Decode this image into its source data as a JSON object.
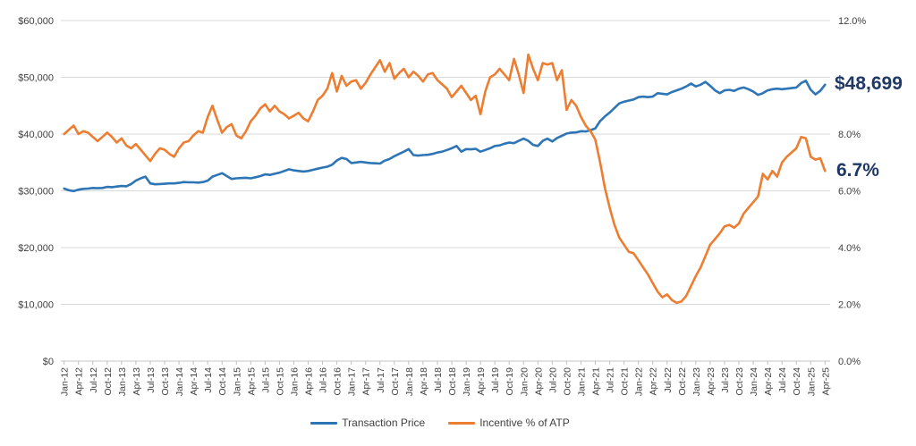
{
  "chart_data": {
    "type": "line",
    "title": "",
    "grid": true,
    "legend_position": "bottom",
    "x_tick_labels": [
      "Jan-12",
      "Apr-12",
      "Jul-12",
      "Oct-12",
      "Jan-13",
      "Apr-13",
      "Jul-13",
      "Oct-13",
      "Jan-14",
      "Apr-14",
      "Jul-14",
      "Oct-14",
      "Jan-15",
      "Apr-15",
      "Jul-15",
      "Oct-15",
      "Jan-16",
      "Apr-16",
      "Jul-16",
      "Oct-16",
      "Jan-17",
      "Apr-17",
      "Jul-17",
      "Oct-17",
      "Jan-18",
      "Apr-18",
      "Jul-18",
      "Oct-18",
      "Jan-19",
      "Apr-19",
      "Jul-19",
      "Oct-19",
      "Jan-20",
      "Apr-20",
      "Jul-20",
      "Oct-20",
      "Jan-21",
      "Apr-21",
      "Jul-21",
      "Oct-21",
      "Jan-22",
      "Apr-22",
      "Jul-22",
      "Oct-22",
      "Jan-23",
      "Apr-23",
      "Jul-23",
      "Oct-23",
      "Jan-24",
      "Apr-24",
      "Jul-24",
      "Oct-24",
      "Jan-25",
      "Apr-25"
    ],
    "x_frequency": "monthly, labeled quarterly",
    "left_axis": {
      "min": 0,
      "max": 60000,
      "step": 10000,
      "tick_labels": [
        "$0",
        "$10,000",
        "$20,000",
        "$30,000",
        "$40,000",
        "$50,000",
        "$60,000"
      ]
    },
    "right_axis": {
      "min": 0,
      "max": 12,
      "step": 2,
      "tick_labels": [
        "0.0%",
        "2.0%",
        "4.0%",
        "6.0%",
        "8.0%",
        "10.0%",
        "12.0%"
      ]
    },
    "series": [
      {
        "name": "Transaction Price",
        "axis": "left",
        "color": "#2E75B6",
        "values": [
          30400,
          30100,
          29950,
          30200,
          30350,
          30400,
          30500,
          30450,
          30500,
          30700,
          30650,
          30750,
          30850,
          30800,
          31200,
          31800,
          32200,
          32500,
          31300,
          31150,
          31200,
          31250,
          31300,
          31300,
          31400,
          31550,
          31500,
          31500,
          31450,
          31550,
          31800,
          32500,
          32800,
          33100,
          32600,
          32100,
          32200,
          32250,
          32300,
          32200,
          32400,
          32600,
          32900,
          32800,
          33000,
          33200,
          33500,
          33800,
          33600,
          33500,
          33400,
          33500,
          33700,
          33900,
          34100,
          34250,
          34600,
          35350,
          35800,
          35600,
          34900,
          35000,
          35100,
          35000,
          34900,
          34850,
          34800,
          35300,
          35600,
          36100,
          36500,
          36900,
          37350,
          36300,
          36200,
          36300,
          36350,
          36500,
          36750,
          36900,
          37200,
          37500,
          37900,
          36900,
          37350,
          37300,
          37400,
          36900,
          37200,
          37500,
          37900,
          38000,
          38300,
          38500,
          38400,
          38800,
          39200,
          38800,
          38100,
          37900,
          38800,
          39200,
          38700,
          39300,
          39700,
          40100,
          40250,
          40300,
          40500,
          40450,
          40700,
          41000,
          42300,
          43100,
          43800,
          44600,
          45400,
          45700,
          45900,
          46100,
          46500,
          46600,
          46500,
          46600,
          47200,
          47100,
          47000,
          47400,
          47700,
          48000,
          48400,
          48900,
          48400,
          48700,
          49200,
          48500,
          47700,
          47200,
          47700,
          47800,
          47600,
          48000,
          48200,
          47900,
          47500,
          46900,
          47200,
          47700,
          47900,
          48000,
          47900,
          48000,
          48100,
          48200,
          49000,
          49400,
          47800,
          47000,
          47600,
          48699
        ]
      },
      {
        "name": "Incentive % of ATP",
        "axis": "right",
        "color": "#ED7D31",
        "values": [
          8.0,
          8.15,
          8.3,
          8.0,
          8.1,
          8.05,
          7.9,
          7.75,
          7.9,
          8.05,
          7.9,
          7.7,
          7.85,
          7.6,
          7.5,
          7.65,
          7.45,
          7.25,
          7.05,
          7.3,
          7.5,
          7.45,
          7.3,
          7.2,
          7.5,
          7.7,
          7.75,
          7.95,
          8.1,
          8.05,
          8.6,
          9.0,
          8.5,
          8.05,
          8.25,
          8.35,
          7.95,
          7.85,
          8.1,
          8.45,
          8.65,
          8.9,
          9.05,
          8.8,
          9.0,
          8.8,
          8.7,
          8.55,
          8.65,
          8.75,
          8.55,
          8.45,
          8.8,
          9.2,
          9.35,
          9.6,
          10.15,
          9.5,
          10.05,
          9.7,
          9.85,
          9.9,
          9.6,
          9.8,
          10.1,
          10.35,
          10.6,
          10.2,
          10.5,
          9.95,
          10.15,
          10.3,
          10.0,
          10.2,
          10.05,
          9.85,
          10.1,
          10.15,
          9.9,
          9.75,
          9.6,
          9.3,
          9.5,
          9.7,
          9.45,
          9.2,
          9.35,
          8.7,
          9.5,
          10.0,
          10.1,
          10.3,
          10.1,
          9.9,
          10.65,
          10.1,
          9.45,
          10.8,
          10.3,
          9.9,
          10.5,
          10.45,
          10.5,
          9.9,
          10.25,
          8.85,
          9.2,
          9.0,
          8.6,
          8.3,
          8.1,
          7.8,
          7.0,
          6.1,
          5.4,
          4.8,
          4.35,
          4.1,
          3.85,
          3.8,
          3.55,
          3.3,
          3.05,
          2.75,
          2.45,
          2.25,
          2.35,
          2.15,
          2.05,
          2.1,
          2.3,
          2.65,
          3.0,
          3.3,
          3.7,
          4.1,
          4.3,
          4.5,
          4.75,
          4.8,
          4.7,
          4.85,
          5.2,
          5.4,
          5.6,
          5.8,
          6.6,
          6.4,
          6.7,
          6.5,
          7.0,
          7.2,
          7.35,
          7.5,
          7.9,
          7.85,
          7.2,
          7.1,
          7.15,
          6.7
        ]
      }
    ],
    "annotations": [
      {
        "text": "$48,699",
        "series": "Transaction Price",
        "color": "#1F3864"
      },
      {
        "text": "6.7%",
        "series": "Incentive % of ATP",
        "color": "#1F3864"
      }
    ]
  },
  "annotations": {
    "price": "$48,699",
    "incentive": "6.7%"
  },
  "legend": {
    "items": [
      {
        "label": "Transaction Price",
        "color": "#2E75B6"
      },
      {
        "label": "Incentive % of ATP",
        "color": "#ED7D31"
      }
    ]
  },
  "colors": {
    "transaction_price_line": "#2E75B6",
    "incentive_line": "#ED7D31",
    "annotation_text": "#1F3864",
    "gridline": "#D9D9D9",
    "axis_text": "#404040"
  }
}
